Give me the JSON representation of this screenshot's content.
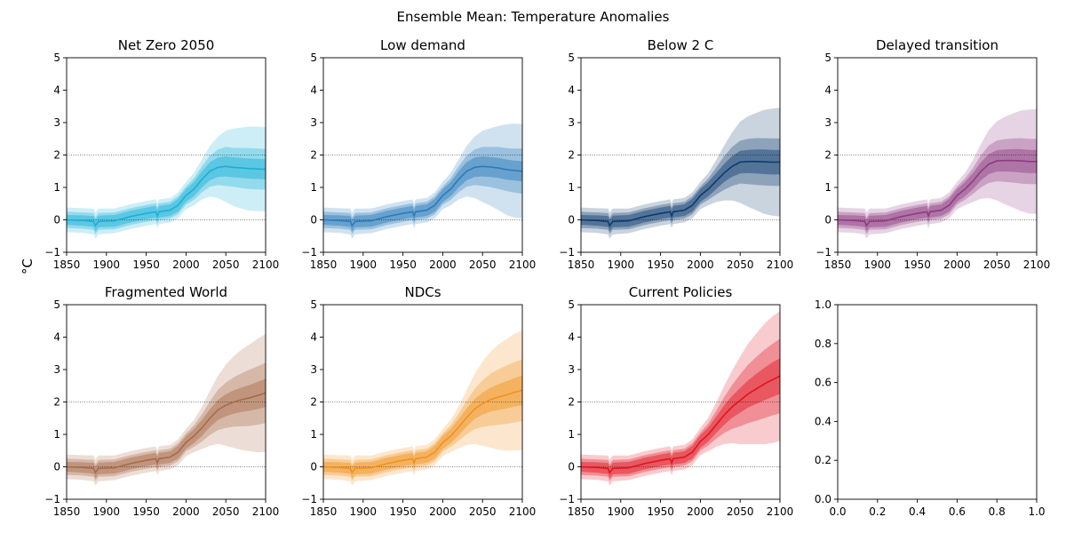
{
  "figure": {
    "suptitle": "Ensemble Mean: Temperature Anomalies",
    "ylabel": "°C"
  },
  "chart_data": [
    {
      "type": "area",
      "title": "Net Zero 2050",
      "color": "#1ab0d8",
      "xlim": [
        1850,
        2100
      ],
      "ylim": [
        -1,
        5
      ],
      "xticks": [
        "1850",
        "1900",
        "1950",
        "2000",
        "2050",
        "2100"
      ],
      "yticks": [
        "−1",
        "0",
        "1",
        "2",
        "3",
        "4",
        "5"
      ],
      "reference_lines": [
        0,
        2
      ],
      "x": [
        1850,
        1870,
        1884,
        1886,
        1890,
        1910,
        1930,
        1950,
        1962,
        1964,
        1966,
        1980,
        1990,
        2000,
        2010,
        2020,
        2030,
        2040,
        2050,
        2060,
        2070,
        2080,
        2090,
        2100
      ],
      "mean": [
        0.0,
        -0.02,
        -0.05,
        -0.18,
        -0.05,
        -0.03,
        0.1,
        0.2,
        0.25,
        0.12,
        0.25,
        0.3,
        0.45,
        0.75,
        0.95,
        1.25,
        1.5,
        1.62,
        1.65,
        1.62,
        1.6,
        1.58,
        1.57,
        1.56
      ],
      "inner_band": [
        0.15,
        0.16,
        0.17,
        0.18,
        0.18,
        0.18,
        0.18,
        0.18,
        0.18,
        0.18,
        0.18,
        0.18,
        0.2,
        0.2,
        0.22,
        0.25,
        0.28,
        0.3,
        0.31,
        0.31,
        0.31,
        0.31,
        0.31,
        0.31
      ],
      "mid_band": [
        0.25,
        0.25,
        0.26,
        0.26,
        0.26,
        0.26,
        0.26,
        0.26,
        0.26,
        0.26,
        0.26,
        0.26,
        0.28,
        0.28,
        0.33,
        0.4,
        0.48,
        0.55,
        0.6,
        0.6,
        0.62,
        0.63,
        0.63,
        0.63
      ],
      "outer_band": [
        0.38,
        0.38,
        0.4,
        0.4,
        0.4,
        0.38,
        0.38,
        0.38,
        0.38,
        0.38,
        0.38,
        0.38,
        0.4,
        0.42,
        0.5,
        0.62,
        0.78,
        0.95,
        1.1,
        1.2,
        1.25,
        1.3,
        1.3,
        1.3
      ]
    },
    {
      "type": "area",
      "title": "Low demand",
      "color": "#2b7bba",
      "xlim": [
        1850,
        2100
      ],
      "ylim": [
        -1,
        5
      ],
      "xticks": [
        "1850",
        "1900",
        "1950",
        "2000",
        "2050",
        "2100"
      ],
      "yticks": [
        "−1",
        "0",
        "1",
        "2",
        "3",
        "4",
        "5"
      ],
      "reference_lines": [
        0,
        2
      ],
      "x": [
        1850,
        1870,
        1884,
        1886,
        1890,
        1910,
        1930,
        1950,
        1962,
        1964,
        1966,
        1980,
        1990,
        2000,
        2010,
        2020,
        2030,
        2040,
        2050,
        2060,
        2070,
        2080,
        2090,
        2100
      ],
      "mean": [
        0.0,
        -0.02,
        -0.05,
        -0.18,
        -0.05,
        -0.03,
        0.1,
        0.2,
        0.25,
        0.12,
        0.25,
        0.3,
        0.45,
        0.75,
        0.95,
        1.25,
        1.5,
        1.62,
        1.65,
        1.63,
        1.6,
        1.55,
        1.52,
        1.5
      ],
      "inner_band": [
        0.15,
        0.16,
        0.17,
        0.18,
        0.18,
        0.18,
        0.18,
        0.18,
        0.18,
        0.18,
        0.18,
        0.18,
        0.2,
        0.2,
        0.22,
        0.25,
        0.28,
        0.3,
        0.31,
        0.31,
        0.31,
        0.31,
        0.31,
        0.31
      ],
      "mid_band": [
        0.25,
        0.25,
        0.26,
        0.26,
        0.26,
        0.26,
        0.26,
        0.26,
        0.26,
        0.26,
        0.26,
        0.26,
        0.28,
        0.28,
        0.33,
        0.4,
        0.48,
        0.55,
        0.6,
        0.62,
        0.65,
        0.66,
        0.68,
        0.7
      ],
      "outer_band": [
        0.38,
        0.38,
        0.4,
        0.4,
        0.4,
        0.38,
        0.38,
        0.38,
        0.38,
        0.38,
        0.38,
        0.38,
        0.4,
        0.42,
        0.5,
        0.62,
        0.78,
        0.95,
        1.1,
        1.2,
        1.3,
        1.4,
        1.45,
        1.45
      ]
    },
    {
      "type": "area",
      "title": "Below 2 C",
      "color": "#0d3b6e",
      "xlim": [
        1850,
        2100
      ],
      "ylim": [
        -1,
        5
      ],
      "xticks": [
        "1850",
        "1900",
        "1950",
        "2000",
        "2050",
        "2100"
      ],
      "yticks": [
        "−1",
        "0",
        "1",
        "2",
        "3",
        "4",
        "5"
      ],
      "reference_lines": [
        0,
        2
      ],
      "x": [
        1850,
        1870,
        1884,
        1886,
        1890,
        1910,
        1930,
        1950,
        1962,
        1964,
        1966,
        1980,
        1990,
        2000,
        2010,
        2020,
        2030,
        2040,
        2050,
        2060,
        2070,
        2080,
        2090,
        2100
      ],
      "mean": [
        0.0,
        -0.02,
        -0.05,
        -0.18,
        -0.05,
        -0.03,
        0.1,
        0.2,
        0.25,
        0.12,
        0.25,
        0.3,
        0.45,
        0.75,
        0.95,
        1.2,
        1.45,
        1.65,
        1.78,
        1.8,
        1.8,
        1.79,
        1.78,
        1.78
      ],
      "inner_band": [
        0.15,
        0.16,
        0.17,
        0.18,
        0.18,
        0.18,
        0.18,
        0.18,
        0.18,
        0.18,
        0.18,
        0.18,
        0.2,
        0.2,
        0.22,
        0.25,
        0.28,
        0.32,
        0.35,
        0.36,
        0.37,
        0.38,
        0.38,
        0.38
      ],
      "mid_band": [
        0.25,
        0.25,
        0.26,
        0.26,
        0.26,
        0.26,
        0.26,
        0.26,
        0.26,
        0.26,
        0.26,
        0.26,
        0.28,
        0.28,
        0.33,
        0.42,
        0.52,
        0.6,
        0.66,
        0.7,
        0.72,
        0.73,
        0.73,
        0.73
      ],
      "outer_band": [
        0.38,
        0.38,
        0.4,
        0.4,
        0.4,
        0.38,
        0.38,
        0.38,
        0.38,
        0.38,
        0.38,
        0.38,
        0.4,
        0.42,
        0.5,
        0.65,
        0.85,
        1.05,
        1.25,
        1.4,
        1.5,
        1.6,
        1.65,
        1.68
      ]
    },
    {
      "type": "area",
      "title": "Delayed transition",
      "color": "#8e3b82",
      "xlim": [
        1850,
        2100
      ],
      "ylim": [
        -1,
        5
      ],
      "xticks": [
        "1850",
        "1900",
        "1950",
        "2000",
        "2050",
        "2100"
      ],
      "yticks": [
        "−1",
        "0",
        "1",
        "2",
        "3",
        "4",
        "5"
      ],
      "reference_lines": [
        0,
        2
      ],
      "x": [
        1850,
        1870,
        1884,
        1886,
        1890,
        1910,
        1930,
        1950,
        1962,
        1964,
        1966,
        1980,
        1990,
        2000,
        2010,
        2020,
        2030,
        2040,
        2050,
        2060,
        2070,
        2080,
        2090,
        2100
      ],
      "mean": [
        0.0,
        -0.02,
        -0.05,
        -0.18,
        -0.05,
        -0.03,
        0.1,
        0.2,
        0.25,
        0.12,
        0.25,
        0.3,
        0.45,
        0.75,
        0.95,
        1.2,
        1.5,
        1.72,
        1.82,
        1.83,
        1.83,
        1.82,
        1.8,
        1.8
      ],
      "inner_band": [
        0.15,
        0.16,
        0.17,
        0.18,
        0.18,
        0.18,
        0.18,
        0.18,
        0.18,
        0.18,
        0.18,
        0.18,
        0.2,
        0.2,
        0.22,
        0.25,
        0.28,
        0.31,
        0.33,
        0.34,
        0.35,
        0.36,
        0.36,
        0.36
      ],
      "mid_band": [
        0.25,
        0.25,
        0.26,
        0.26,
        0.26,
        0.26,
        0.26,
        0.26,
        0.26,
        0.26,
        0.26,
        0.26,
        0.28,
        0.28,
        0.33,
        0.4,
        0.5,
        0.58,
        0.63,
        0.66,
        0.68,
        0.7,
        0.7,
        0.7
      ],
      "outer_band": [
        0.38,
        0.38,
        0.4,
        0.4,
        0.4,
        0.38,
        0.38,
        0.38,
        0.38,
        0.38,
        0.38,
        0.38,
        0.4,
        0.42,
        0.5,
        0.65,
        0.85,
        1.05,
        1.22,
        1.35,
        1.45,
        1.55,
        1.6,
        1.62
      ]
    },
    {
      "type": "area",
      "title": "Fragmented World",
      "color": "#a86a48",
      "xlim": [
        1850,
        2100
      ],
      "ylim": [
        -1,
        5
      ],
      "xticks": [
        "1850",
        "1900",
        "1950",
        "2000",
        "2050",
        "2100"
      ],
      "yticks": [
        "−1",
        "0",
        "1",
        "2",
        "3",
        "4",
        "5"
      ],
      "reference_lines": [
        0,
        2
      ],
      "x": [
        1850,
        1870,
        1884,
        1886,
        1890,
        1910,
        1930,
        1950,
        1962,
        1964,
        1966,
        1980,
        1990,
        2000,
        2010,
        2020,
        2030,
        2040,
        2050,
        2060,
        2070,
        2080,
        2090,
        2100
      ],
      "mean": [
        0.0,
        -0.02,
        -0.05,
        -0.18,
        -0.05,
        -0.03,
        0.1,
        0.2,
        0.25,
        0.12,
        0.25,
        0.3,
        0.45,
        0.75,
        0.95,
        1.2,
        1.5,
        1.75,
        1.9,
        2.0,
        2.07,
        2.13,
        2.2,
        2.28
      ],
      "inner_band": [
        0.15,
        0.16,
        0.17,
        0.18,
        0.18,
        0.18,
        0.18,
        0.18,
        0.18,
        0.18,
        0.18,
        0.18,
        0.2,
        0.2,
        0.22,
        0.25,
        0.28,
        0.31,
        0.34,
        0.36,
        0.38,
        0.4,
        0.42,
        0.44
      ],
      "mid_band": [
        0.25,
        0.25,
        0.26,
        0.26,
        0.26,
        0.26,
        0.26,
        0.26,
        0.26,
        0.26,
        0.26,
        0.26,
        0.28,
        0.28,
        0.33,
        0.42,
        0.52,
        0.62,
        0.7,
        0.76,
        0.82,
        0.87,
        0.9,
        0.93
      ],
      "outer_band": [
        0.38,
        0.38,
        0.4,
        0.4,
        0.4,
        0.38,
        0.38,
        0.38,
        0.38,
        0.38,
        0.38,
        0.38,
        0.4,
        0.42,
        0.5,
        0.65,
        0.85,
        1.05,
        1.25,
        1.42,
        1.55,
        1.65,
        1.75,
        1.82
      ]
    },
    {
      "type": "area",
      "title": "NDCs",
      "color": "#f0921f",
      "xlim": [
        1850,
        2100
      ],
      "ylim": [
        -1,
        5
      ],
      "xticks": [
        "1850",
        "1900",
        "1950",
        "2000",
        "2050",
        "2100"
      ],
      "yticks": [
        "−1",
        "0",
        "1",
        "2",
        "3",
        "4",
        "5"
      ],
      "reference_lines": [
        0,
        2
      ],
      "x": [
        1850,
        1870,
        1884,
        1886,
        1890,
        1910,
        1930,
        1950,
        1962,
        1964,
        1966,
        1980,
        1990,
        2000,
        2010,
        2020,
        2030,
        2040,
        2050,
        2060,
        2070,
        2080,
        2090,
        2100
      ],
      "mean": [
        0.0,
        -0.02,
        -0.05,
        -0.18,
        -0.05,
        -0.03,
        0.1,
        0.2,
        0.25,
        0.12,
        0.25,
        0.3,
        0.45,
        0.75,
        0.95,
        1.22,
        1.52,
        1.78,
        1.95,
        2.07,
        2.15,
        2.22,
        2.3,
        2.36
      ],
      "inner_band": [
        0.15,
        0.16,
        0.17,
        0.18,
        0.18,
        0.18,
        0.18,
        0.18,
        0.18,
        0.18,
        0.18,
        0.18,
        0.2,
        0.2,
        0.22,
        0.25,
        0.28,
        0.31,
        0.34,
        0.37,
        0.4,
        0.42,
        0.44,
        0.46
      ],
      "mid_band": [
        0.25,
        0.25,
        0.26,
        0.26,
        0.26,
        0.26,
        0.26,
        0.26,
        0.26,
        0.26,
        0.26,
        0.26,
        0.28,
        0.28,
        0.33,
        0.42,
        0.52,
        0.62,
        0.72,
        0.8,
        0.86,
        0.9,
        0.93,
        0.95
      ],
      "outer_band": [
        0.38,
        0.38,
        0.4,
        0.4,
        0.4,
        0.38,
        0.38,
        0.38,
        0.38,
        0.38,
        0.38,
        0.38,
        0.4,
        0.42,
        0.5,
        0.65,
        0.85,
        1.08,
        1.3,
        1.48,
        1.62,
        1.72,
        1.8,
        1.85
      ]
    },
    {
      "type": "area",
      "title": "Current Policies",
      "color": "#e0141e",
      "xlim": [
        1850,
        2100
      ],
      "ylim": [
        -1,
        5
      ],
      "xticks": [
        "1850",
        "1900",
        "1950",
        "2000",
        "2050",
        "2100"
      ],
      "yticks": [
        "−1",
        "0",
        "1",
        "2",
        "3",
        "4",
        "5"
      ],
      "reference_lines": [
        0,
        2
      ],
      "x": [
        1850,
        1870,
        1884,
        1886,
        1890,
        1910,
        1930,
        1950,
        1962,
        1964,
        1966,
        1980,
        1990,
        2000,
        2010,
        2020,
        2030,
        2040,
        2050,
        2060,
        2070,
        2080,
        2090,
        2100
      ],
      "mean": [
        0.0,
        -0.02,
        -0.05,
        -0.18,
        -0.05,
        -0.03,
        0.1,
        0.2,
        0.25,
        0.12,
        0.25,
        0.3,
        0.45,
        0.78,
        1.0,
        1.3,
        1.6,
        1.85,
        2.05,
        2.25,
        2.4,
        2.55,
        2.68,
        2.8
      ],
      "inner_band": [
        0.15,
        0.16,
        0.17,
        0.18,
        0.18,
        0.18,
        0.18,
        0.18,
        0.18,
        0.18,
        0.18,
        0.18,
        0.2,
        0.2,
        0.22,
        0.25,
        0.3,
        0.34,
        0.38,
        0.42,
        0.46,
        0.5,
        0.53,
        0.55
      ],
      "mid_band": [
        0.25,
        0.25,
        0.26,
        0.26,
        0.26,
        0.26,
        0.26,
        0.26,
        0.26,
        0.26,
        0.26,
        0.26,
        0.28,
        0.28,
        0.34,
        0.43,
        0.55,
        0.68,
        0.8,
        0.9,
        0.98,
        1.05,
        1.1,
        1.15
      ],
      "outer_band": [
        0.38,
        0.38,
        0.4,
        0.4,
        0.4,
        0.38,
        0.38,
        0.38,
        0.38,
        0.38,
        0.38,
        0.38,
        0.4,
        0.42,
        0.52,
        0.68,
        0.9,
        1.12,
        1.35,
        1.55,
        1.7,
        1.85,
        1.95,
        2.0
      ]
    },
    {
      "type": "empty",
      "title": "",
      "xlim": [
        0,
        1
      ],
      "ylim": [
        0,
        1
      ],
      "xticks": [
        "0.0",
        "0.2",
        "0.4",
        "0.6",
        "0.8",
        "1.0"
      ],
      "yticks": [
        "0.0",
        "0.2",
        "0.4",
        "0.6",
        "0.8",
        "1.0"
      ]
    }
  ]
}
